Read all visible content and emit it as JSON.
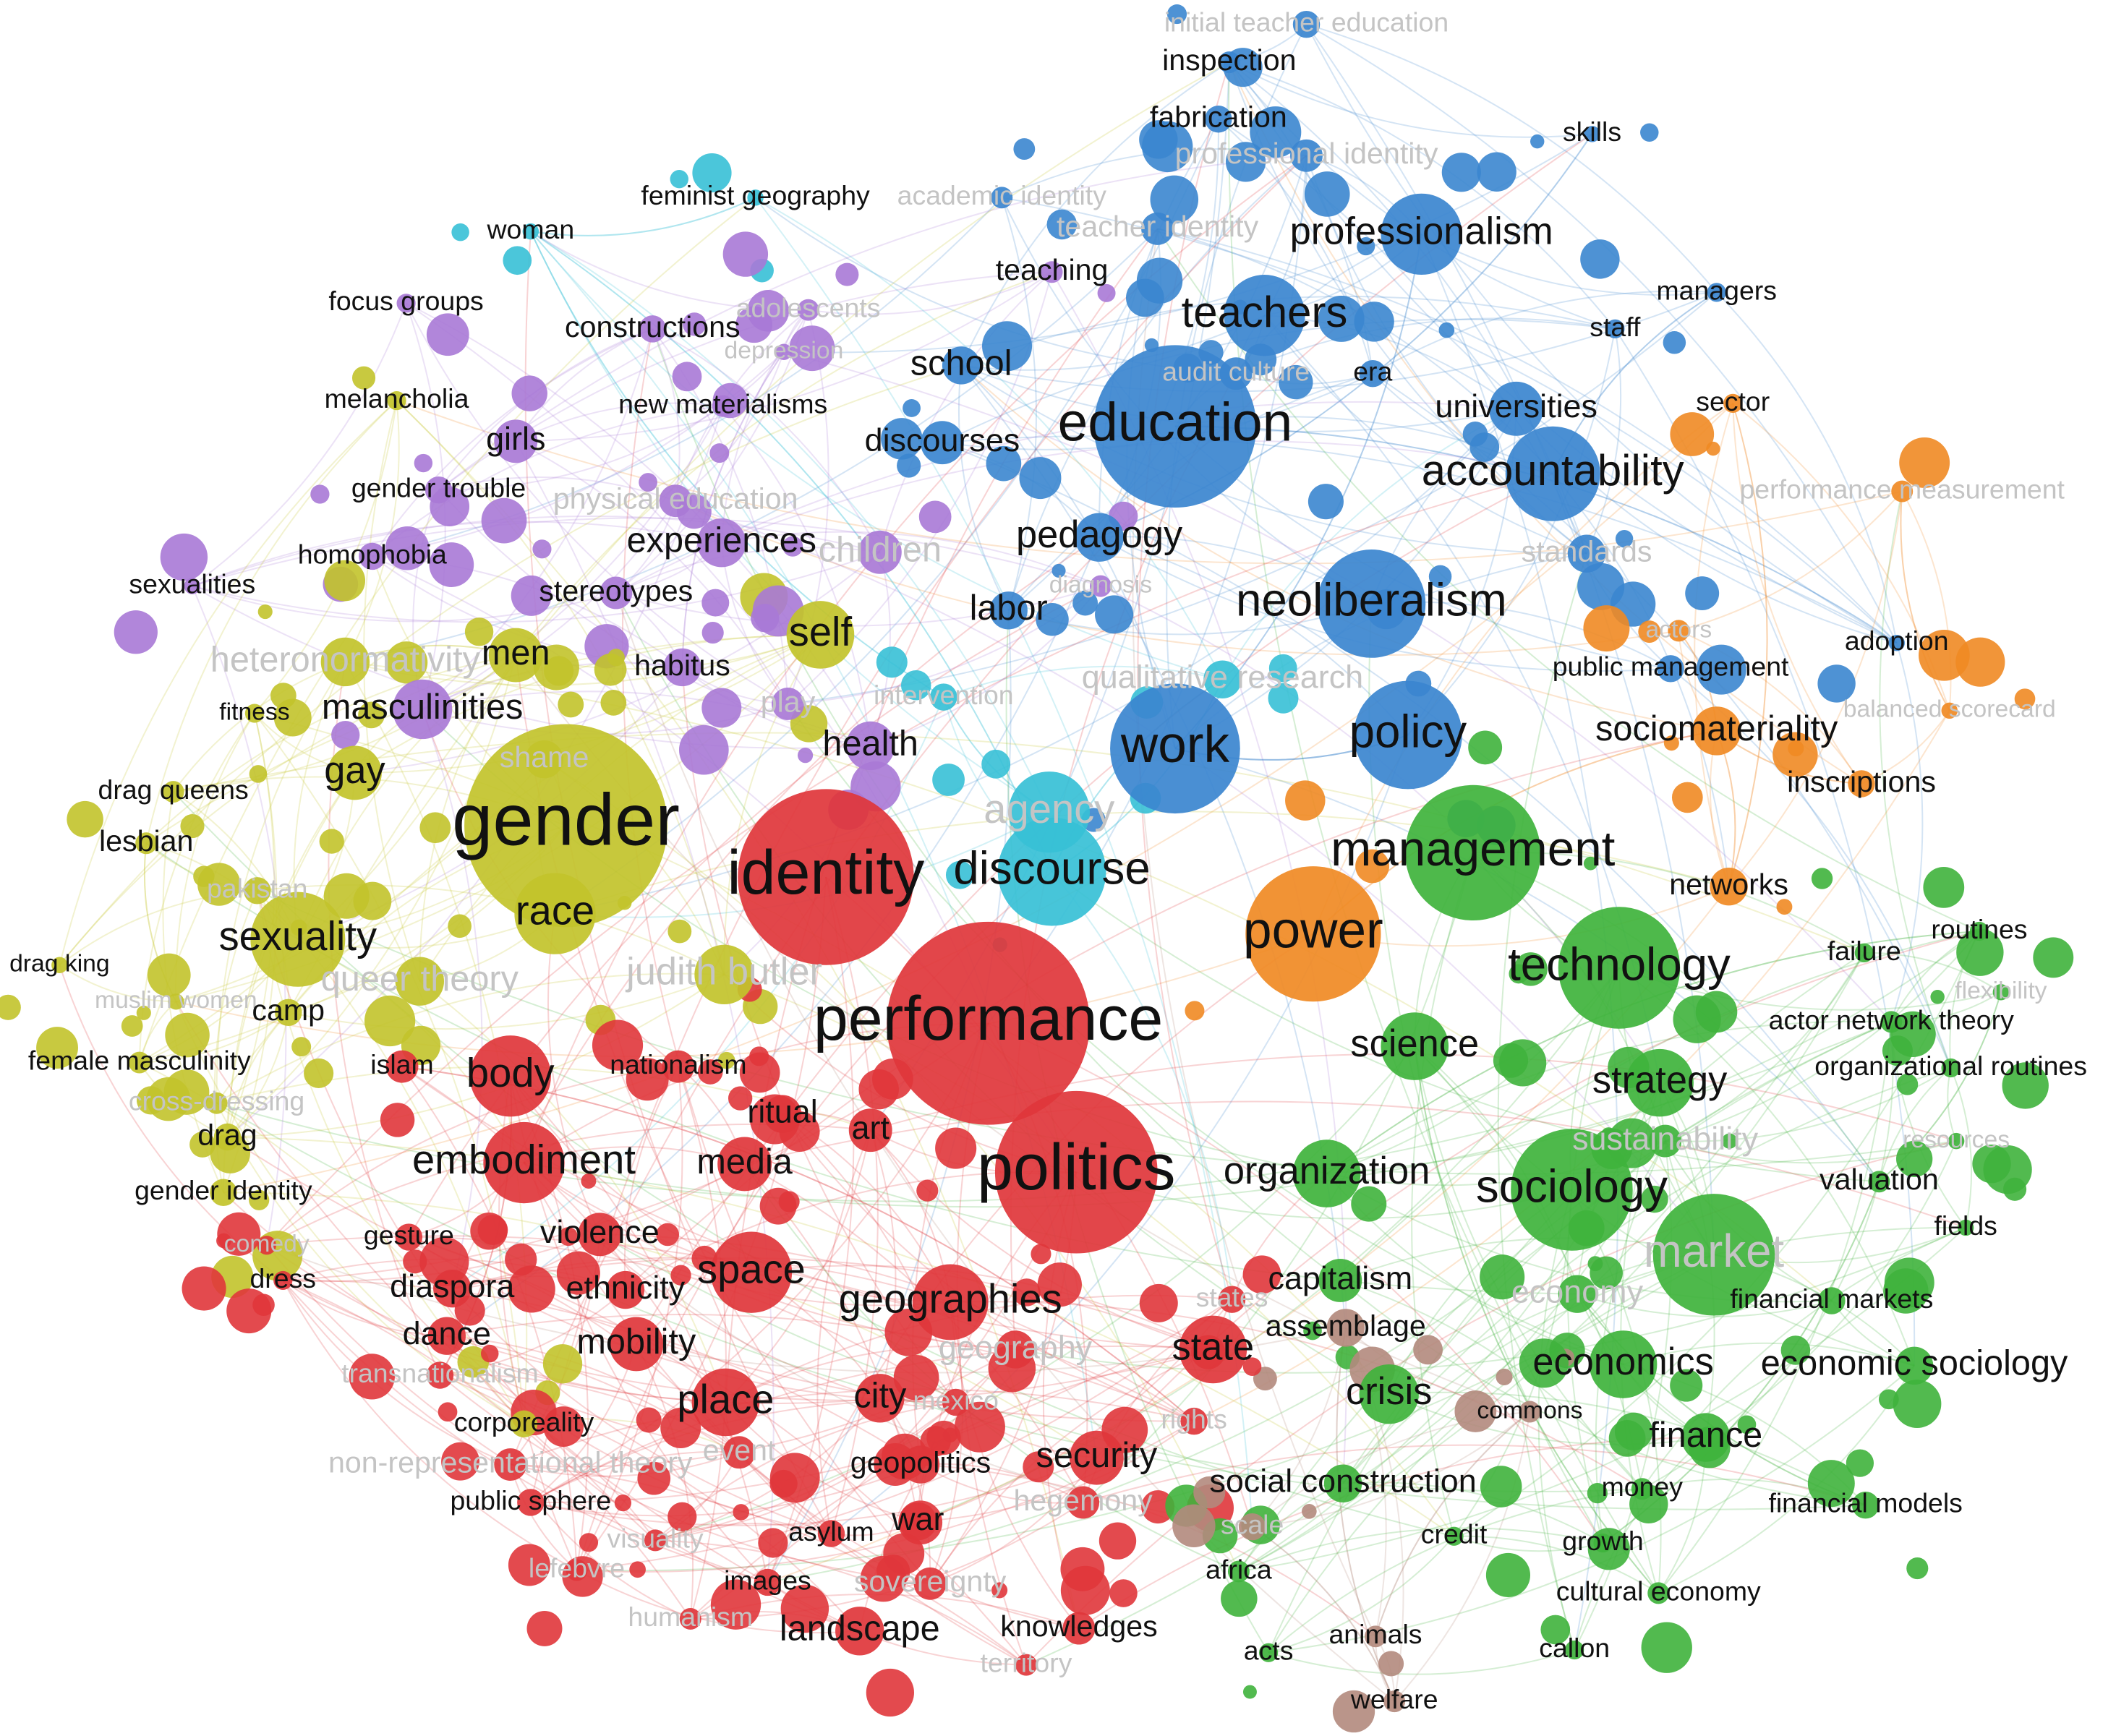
{
  "nodes": [
    {
      "label": "initial teacher education",
      "color": "#3b86cf"
    },
    {
      "label": "inspection",
      "color": "#3b86cf"
    },
    {
      "label": "fabrication",
      "color": "#3b86cf"
    },
    {
      "label": "professional identity",
      "color": "#3b86cf"
    },
    {
      "label": "skills",
      "color": "#3b86cf"
    },
    {
      "label": "academic identity",
      "color": "#3b86cf"
    },
    {
      "label": "teacher identity",
      "color": "#3b86cf"
    },
    {
      "label": "professionalism",
      "color": "#3b86cf"
    },
    {
      "label": "teaching",
      "color": "#a979d6"
    },
    {
      "label": "managers",
      "color": "#3b86cf"
    },
    {
      "label": "staff",
      "color": "#3b86cf"
    },
    {
      "label": "teachers",
      "color": "#3b86cf"
    },
    {
      "label": "school",
      "color": "#3b86cf"
    },
    {
      "label": "education",
      "color": "#3b86cf"
    },
    {
      "label": "audit culture",
      "color": "#3b86cf"
    },
    {
      "label": "era",
      "color": "#3b86cf"
    },
    {
      "label": "universities",
      "color": "#3b86cf"
    },
    {
      "label": "sector",
      "color": "#f08a24"
    },
    {
      "label": "discourses",
      "color": "#3b86cf"
    },
    {
      "label": "accountability",
      "color": "#3b86cf"
    },
    {
      "label": "pedagogy",
      "color": "#3b86cf"
    },
    {
      "label": "standards",
      "color": "#3b86cf"
    },
    {
      "label": "neoliberalism",
      "color": "#3b86cf"
    },
    {
      "label": "labor",
      "color": "#3b86cf"
    },
    {
      "label": "policy",
      "color": "#3b86cf"
    },
    {
      "label": "work",
      "color": "#3b86cf"
    },
    {
      "label": "adoption",
      "color": "#3b86cf"
    },
    {
      "label": "public management",
      "color": "#3b86cf"
    },
    {
      "label": "management",
      "color": "#3fb33c"
    },
    {
      "label": "technology",
      "color": "#3fb33c"
    },
    {
      "label": "science",
      "color": "#3fb33c"
    },
    {
      "label": "strategy",
      "color": "#3fb33c"
    },
    {
      "label": "organization",
      "color": "#3fb33c"
    },
    {
      "label": "sociology",
      "color": "#3fb33c"
    },
    {
      "label": "market",
      "color": "#3fb33c"
    },
    {
      "label": "routines",
      "color": "#3fb33c"
    },
    {
      "label": "failure",
      "color": "#3fb33c"
    },
    {
      "label": "actor network theory",
      "color": "#3fb33c"
    },
    {
      "label": "organizational routines",
      "color": "#3fb33c"
    },
    {
      "label": "resources",
      "color": "#3fb33c"
    },
    {
      "label": "valuation",
      "color": "#3fb33c"
    },
    {
      "label": "fields",
      "color": "#3fb33c"
    },
    {
      "label": "financial markets",
      "color": "#3fb33c"
    },
    {
      "label": "economics",
      "color": "#3fb33c"
    },
    {
      "label": "economic sociology",
      "color": "#3fb33c"
    },
    {
      "label": "crisis",
      "color": "#3fb33c"
    },
    {
      "label": "finance",
      "color": "#3fb33c"
    },
    {
      "label": "commons",
      "color": "#b38a7d"
    },
    {
      "label": "social construction",
      "color": "#3fb33c"
    },
    {
      "label": "money",
      "color": "#3fb33c"
    },
    {
      "label": "financial models",
      "color": "#3fb33c"
    },
    {
      "label": "credit",
      "color": "#3fb33c"
    },
    {
      "label": "growth",
      "color": "#3fb33c"
    },
    {
      "label": "cultural economy",
      "color": "#3fb33c"
    },
    {
      "label": "callon",
      "color": "#3fb33c"
    },
    {
      "label": "capitalism",
      "color": "#3fb33c"
    },
    {
      "label": "assemblage",
      "color": "#b38a7d"
    },
    {
      "label": "flexibility",
      "color": "#3fb33c"
    },
    {
      "label": "sustainability",
      "color": "#3fb33c"
    },
    {
      "label": "economy",
      "color": "#3fb33c"
    },
    {
      "label": "power",
      "color": "#f08a24"
    },
    {
      "label": "sociomateriality",
      "color": "#f08a24"
    },
    {
      "label": "inscriptions",
      "color": "#f08a24"
    },
    {
      "label": "networks",
      "color": "#f08a24"
    },
    {
      "label": "balanced scorecard",
      "color": "#f08a24"
    },
    {
      "label": "performance measurement",
      "color": "#f08a24"
    },
    {
      "label": "actors",
      "color": "#f08a24"
    },
    {
      "label": "agency",
      "color": "#37c0d6"
    },
    {
      "label": "discourse",
      "color": "#37c0d6"
    },
    {
      "label": "feminist geography",
      "color": "#37c0d6"
    },
    {
      "label": "woman",
      "color": "#37c0d6"
    },
    {
      "label": "intervention",
      "color": "#37c0d6"
    },
    {
      "label": "qualitative research",
      "color": "#37c0d6"
    },
    {
      "label": "focus groups",
      "color": "#a979d6"
    },
    {
      "label": "constructions",
      "color": "#a979d6"
    },
    {
      "label": "adolescents",
      "color": "#a979d6"
    },
    {
      "label": "depression",
      "color": "#a979d6"
    },
    {
      "label": "new materialisms",
      "color": "#a979d6"
    },
    {
      "label": "girls",
      "color": "#a979d6"
    },
    {
      "label": "gender trouble",
      "color": "#a979d6"
    },
    {
      "label": "physical education",
      "color": "#a979d6"
    },
    {
      "label": "experiences",
      "color": "#a979d6"
    },
    {
      "label": "children",
      "color": "#a979d6"
    },
    {
      "label": "homophobia",
      "color": "#a979d6"
    },
    {
      "label": "sexualities",
      "color": "#a979d6"
    },
    {
      "label": "stereotypes",
      "color": "#a979d6"
    },
    {
      "label": "self",
      "color": "#c2c32b"
    },
    {
      "label": "habitus",
      "color": "#a979d6"
    },
    {
      "label": "men",
      "color": "#c2c32b"
    },
    {
      "label": "health",
      "color": "#a979d6"
    },
    {
      "label": "play",
      "color": "#a979d6"
    },
    {
      "label": "masculinities",
      "color": "#a979d6"
    },
    {
      "label": "diagnosis",
      "color": "#a979d6"
    },
    {
      "label": "melancholia",
      "color": "#c2c32b"
    },
    {
      "label": "heteronormativity",
      "color": "#c2c32b"
    },
    {
      "label": "fitness",
      "color": "#c2c32b"
    },
    {
      "label": "gay",
      "color": "#c2c32b"
    },
    {
      "label": "drag queens",
      "color": "#c2c32b"
    },
    {
      "label": "lesbian",
      "color": "#c2c32b"
    },
    {
      "label": "gender",
      "color": "#c2c32b"
    },
    {
      "label": "shame",
      "color": "#c2c32b"
    },
    {
      "label": "pakistan",
      "color": "#c2c32b"
    },
    {
      "label": "sexuality",
      "color": "#c2c32b"
    },
    {
      "label": "race",
      "color": "#c2c32b"
    },
    {
      "label": "drag king",
      "color": "#c2c32b"
    },
    {
      "label": "muslim women",
      "color": "#c2c32b"
    },
    {
      "label": "queer theory",
      "color": "#c2c32b"
    },
    {
      "label": "judith butler",
      "color": "#c2c32b"
    },
    {
      "label": "camp",
      "color": "#c2c32b"
    },
    {
      "label": "female masculinity",
      "color": "#c2c32b"
    },
    {
      "label": "cross-dressing",
      "color": "#c2c32b"
    },
    {
      "label": "drag",
      "color": "#c2c32b"
    },
    {
      "label": "gender identity",
      "color": "#c2c32b"
    },
    {
      "label": "corporeality",
      "color": "#c2c32b"
    },
    {
      "label": "identity",
      "color": "#e0363b"
    },
    {
      "label": "performance",
      "color": "#e0363b"
    },
    {
      "label": "politics",
      "color": "#e0363b"
    },
    {
      "label": "body",
      "color": "#e0363b"
    },
    {
      "label": "embodiment",
      "color": "#e0363b"
    },
    {
      "label": "islam",
      "color": "#e0363b"
    },
    {
      "label": "nationalism",
      "color": "#e0363b"
    },
    {
      "label": "ritual",
      "color": "#e0363b"
    },
    {
      "label": "art",
      "color": "#e0363b"
    },
    {
      "label": "media",
      "color": "#e0363b"
    },
    {
      "label": "gesture",
      "color": "#e0363b"
    },
    {
      "label": "violence",
      "color": "#e0363b"
    },
    {
      "label": "comedy",
      "color": "#e0363b"
    },
    {
      "label": "dress",
      "color": "#e0363b"
    },
    {
      "label": "diaspora",
      "color": "#e0363b"
    },
    {
      "label": "ethnicity",
      "color": "#e0363b"
    },
    {
      "label": "space",
      "color": "#e0363b"
    },
    {
      "label": "geographies",
      "color": "#e0363b"
    },
    {
      "label": "state",
      "color": "#e0363b"
    },
    {
      "label": "dance",
      "color": "#e0363b"
    },
    {
      "label": "mobility",
      "color": "#e0363b"
    },
    {
      "label": "transnationalism",
      "color": "#e0363b"
    },
    {
      "label": "place",
      "color": "#e0363b"
    },
    {
      "label": "city",
      "color": "#e0363b"
    },
    {
      "label": "mexico",
      "color": "#e0363b"
    },
    {
      "label": "rights",
      "color": "#e0363b"
    },
    {
      "label": "non-representational theory",
      "color": "#e0363b"
    },
    {
      "label": "event",
      "color": "#e0363b"
    },
    {
      "label": "geopolitics",
      "color": "#e0363b"
    },
    {
      "label": "security",
      "color": "#e0363b"
    },
    {
      "label": "public sphere",
      "color": "#e0363b"
    },
    {
      "label": "hegemony",
      "color": "#e0363b"
    },
    {
      "label": "visuality",
      "color": "#e0363b"
    },
    {
      "label": "asylum",
      "color": "#e0363b"
    },
    {
      "label": "war",
      "color": "#e0363b"
    },
    {
      "label": "lefebvre",
      "color": "#e0363b"
    },
    {
      "label": "images",
      "color": "#e0363b"
    },
    {
      "label": "sovereignty",
      "color": "#e0363b"
    },
    {
      "label": "humanism",
      "color": "#e0363b"
    },
    {
      "label": "landscape",
      "color": "#e0363b"
    },
    {
      "label": "knowledges",
      "color": "#e0363b"
    },
    {
      "label": "territory",
      "color": "#e0363b"
    },
    {
      "label": "acts",
      "color": "#3fb33c"
    },
    {
      "label": "africa",
      "color": "#3fb33c"
    },
    {
      "label": "scale",
      "color": "#b38a7d"
    },
    {
      "label": "animals",
      "color": "#b38a7d"
    },
    {
      "label": "welfare",
      "color": "#b38a7d"
    },
    {
      "label": "states",
      "color": "#e0363b"
    },
    {
      "label": "geography",
      "color": "#e0363b"
    }
  ]
}
